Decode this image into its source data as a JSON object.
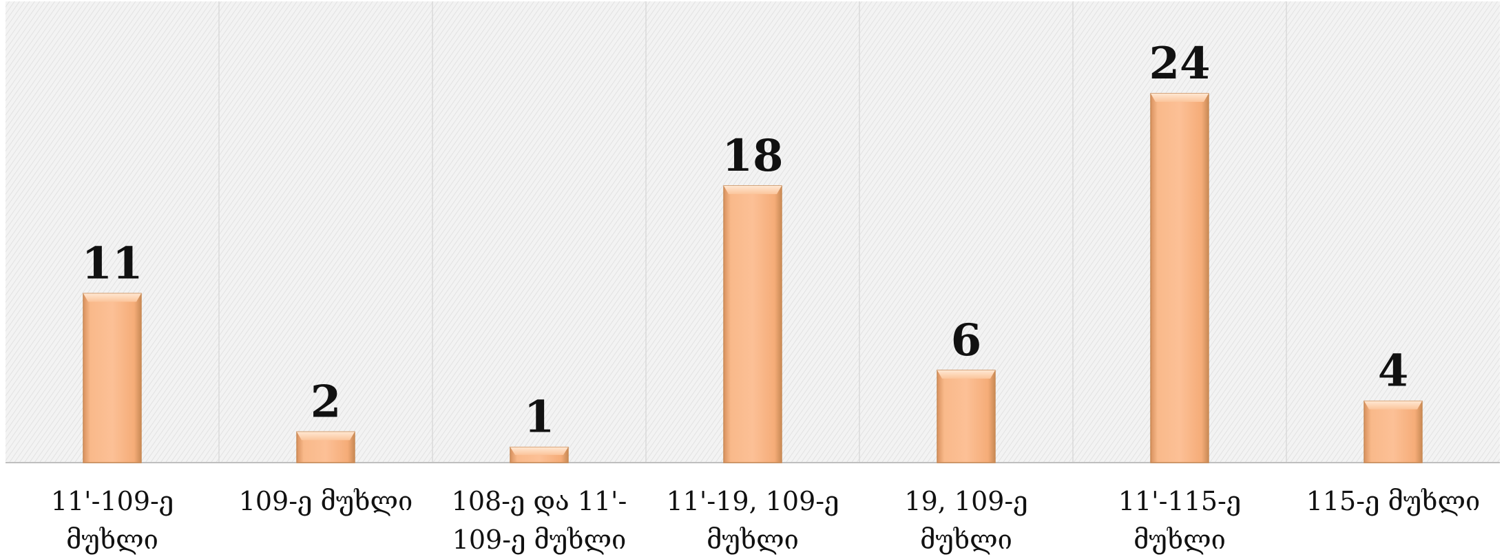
{
  "chart_data": {
    "type": "bar",
    "categories": [
      [
        "11'-109-ე",
        "მუხლი"
      ],
      [
        "109-ე მუხლი"
      ],
      [
        "108-ე და 11'-",
        "109-ე მუხლი"
      ],
      [
        "11'-19, 109-ე",
        "მუხლი"
      ],
      [
        "19, 109-ე",
        "მუხლი"
      ],
      [
        "11'-115-ე",
        "მუხლი"
      ],
      [
        "115-ე მუხლი"
      ]
    ],
    "values": [
      11,
      2,
      1,
      18,
      6,
      24,
      4
    ],
    "ylim": [
      0,
      30
    ],
    "data_labels": [
      "11",
      "2",
      "1",
      "18",
      "6",
      "24",
      "4"
    ],
    "bar_color": "#f9b98a",
    "bar_edge_color": "#c98a55",
    "plot_background": "#f2f2f2",
    "grid": true
  }
}
